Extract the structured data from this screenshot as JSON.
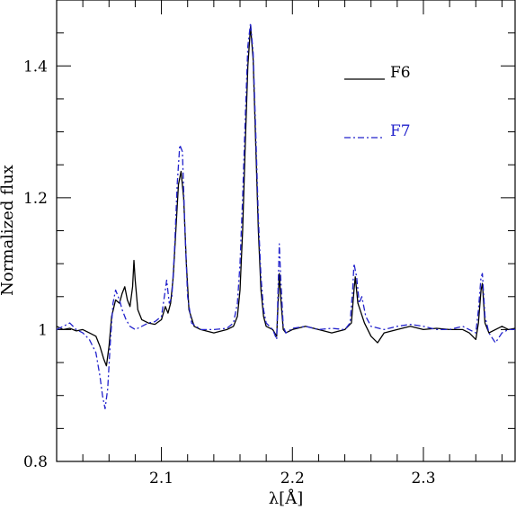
{
  "chart_data": {
    "type": "line",
    "xlabel": "λ[Å]",
    "ylabel": "Normalized flux",
    "xlim": [
      2.02,
      2.37
    ],
    "ylim": [
      0.8,
      1.5
    ],
    "x_ticks": [
      2.1,
      2.2,
      2.3
    ],
    "x_tick_labels": [
      "2.1",
      "2.2",
      "2.3"
    ],
    "y_ticks": [
      0.8,
      1.0,
      1.2,
      1.4
    ],
    "y_tick_labels": [
      "0.8",
      "1",
      "1.2",
      "1.4"
    ],
    "grid": false,
    "legend_position": "upper-right",
    "series": [
      {
        "name": "F6",
        "color": "#000000",
        "dash": "solid",
        "points": [
          [
            2.02,
            1.005
          ],
          [
            2.025,
            1.0
          ],
          [
            2.03,
            1.002
          ],
          [
            2.035,
            0.998
          ],
          [
            2.04,
            1.0
          ],
          [
            2.045,
            0.995
          ],
          [
            2.05,
            0.99
          ],
          [
            2.053,
            0.975
          ],
          [
            2.056,
            0.955
          ],
          [
            2.058,
            0.945
          ],
          [
            2.06,
            0.975
          ],
          [
            2.062,
            1.02
          ],
          [
            2.065,
            1.045
          ],
          [
            2.068,
            1.04
          ],
          [
            2.07,
            1.055
          ],
          [
            2.072,
            1.065
          ],
          [
            2.074,
            1.045
          ],
          [
            2.076,
            1.035
          ],
          [
            2.078,
            1.065
          ],
          [
            2.079,
            1.105
          ],
          [
            2.08,
            1.075
          ],
          [
            2.082,
            1.03
          ],
          [
            2.085,
            1.015
          ],
          [
            2.09,
            1.01
          ],
          [
            2.095,
            1.008
          ],
          [
            2.1,
            1.015
          ],
          [
            2.103,
            1.035
          ],
          [
            2.105,
            1.025
          ],
          [
            2.107,
            1.04
          ],
          [
            2.109,
            1.08
          ],
          [
            2.111,
            1.15
          ],
          [
            2.113,
            1.22
          ],
          [
            2.115,
            1.24
          ],
          [
            2.117,
            1.2
          ],
          [
            2.119,
            1.1
          ],
          [
            2.121,
            1.03
          ],
          [
            2.125,
            1.005
          ],
          [
            2.13,
            1.0
          ],
          [
            2.14,
            0.995
          ],
          [
            2.15,
            1.0
          ],
          [
            2.155,
            1.005
          ],
          [
            2.158,
            1.02
          ],
          [
            2.16,
            1.06
          ],
          [
            2.162,
            1.15
          ],
          [
            2.164,
            1.28
          ],
          [
            2.166,
            1.4
          ],
          [
            2.168,
            1.46
          ],
          [
            2.17,
            1.41
          ],
          [
            2.172,
            1.28
          ],
          [
            2.174,
            1.15
          ],
          [
            2.176,
            1.06
          ],
          [
            2.178,
            1.02
          ],
          [
            2.18,
            1.005
          ],
          [
            2.185,
            1.0
          ],
          [
            2.188,
            0.99
          ],
          [
            2.189,
            1.04
          ],
          [
            2.19,
            1.085
          ],
          [
            2.191,
            1.05
          ],
          [
            2.193,
            1.0
          ],
          [
            2.195,
            0.995
          ],
          [
            2.2,
            1.0
          ],
          [
            2.21,
            1.005
          ],
          [
            2.22,
            1.0
          ],
          [
            2.23,
            0.995
          ],
          [
            2.24,
            1.0
          ],
          [
            2.245,
            1.01
          ],
          [
            2.247,
            1.06
          ],
          [
            2.248,
            1.08
          ],
          [
            2.25,
            1.04
          ],
          [
            2.255,
            1.01
          ],
          [
            2.26,
            0.99
          ],
          [
            2.265,
            0.98
          ],
          [
            2.27,
            0.995
          ],
          [
            2.28,
            1.0
          ],
          [
            2.29,
            1.005
          ],
          [
            2.3,
            1.0
          ],
          [
            2.31,
            1.002
          ],
          [
            2.32,
            1.0
          ],
          [
            2.33,
            1.0
          ],
          [
            2.335,
            0.995
          ],
          [
            2.34,
            0.985
          ],
          [
            2.342,
            1.01
          ],
          [
            2.344,
            1.06
          ],
          [
            2.345,
            1.07
          ],
          [
            2.347,
            1.01
          ],
          [
            2.35,
            0.995
          ],
          [
            2.355,
            1.0
          ],
          [
            2.36,
            1.005
          ],
          [
            2.365,
            1.0
          ],
          [
            2.37,
            1.002
          ]
        ]
      },
      {
        "name": "F7",
        "color": "#2222cc",
        "dash": "dashdot",
        "points": [
          [
            2.02,
            1.0
          ],
          [
            2.025,
            1.005
          ],
          [
            2.03,
            1.01
          ],
          [
            2.035,
            1.0
          ],
          [
            2.04,
            0.995
          ],
          [
            2.045,
            0.985
          ],
          [
            2.05,
            0.965
          ],
          [
            2.053,
            0.93
          ],
          [
            2.055,
            0.9
          ],
          [
            2.057,
            0.88
          ],
          [
            2.059,
            0.91
          ],
          [
            2.061,
            0.98
          ],
          [
            2.063,
            1.04
          ],
          [
            2.065,
            1.06
          ],
          [
            2.068,
            1.045
          ],
          [
            2.07,
            1.03
          ],
          [
            2.073,
            1.015
          ],
          [
            2.076,
            1.005
          ],
          [
            2.08,
            1.0
          ],
          [
            2.085,
            1.005
          ],
          [
            2.09,
            1.01
          ],
          [
            2.095,
            1.012
          ],
          [
            2.1,
            1.02
          ],
          [
            2.103,
            1.06
          ],
          [
            2.104,
            1.075
          ],
          [
            2.106,
            1.04
          ],
          [
            2.108,
            1.05
          ],
          [
            2.11,
            1.12
          ],
          [
            2.112,
            1.22
          ],
          [
            2.114,
            1.28
          ],
          [
            2.116,
            1.27
          ],
          [
            2.118,
            1.15
          ],
          [
            2.12,
            1.05
          ],
          [
            2.123,
            1.01
          ],
          [
            2.13,
            1.0
          ],
          [
            2.14,
            1.0
          ],
          [
            2.15,
            1.002
          ],
          [
            2.155,
            1.01
          ],
          [
            2.158,
            1.04
          ],
          [
            2.16,
            1.1
          ],
          [
            2.162,
            1.2
          ],
          [
            2.164,
            1.32
          ],
          [
            2.166,
            1.43
          ],
          [
            2.168,
            1.465
          ],
          [
            2.17,
            1.42
          ],
          [
            2.172,
            1.3
          ],
          [
            2.174,
            1.17
          ],
          [
            2.176,
            1.08
          ],
          [
            2.178,
            1.03
          ],
          [
            2.18,
            1.01
          ],
          [
            2.185,
            1.0
          ],
          [
            2.188,
            0.985
          ],
          [
            2.189,
            1.06
          ],
          [
            2.19,
            1.13
          ],
          [
            2.191,
            1.08
          ],
          [
            2.193,
            1.005
          ],
          [
            2.195,
            0.995
          ],
          [
            2.2,
            1.002
          ],
          [
            2.21,
            1.005
          ],
          [
            2.22,
            1.0
          ],
          [
            2.23,
            1.002
          ],
          [
            2.24,
            1.0
          ],
          [
            2.244,
            1.01
          ],
          [
            2.246,
            1.06
          ],
          [
            2.247,
            1.1
          ],
          [
            2.249,
            1.08
          ],
          [
            2.251,
            1.04
          ],
          [
            2.253,
            1.05
          ],
          [
            2.256,
            1.02
          ],
          [
            2.26,
            1.005
          ],
          [
            2.27,
            1.0
          ],
          [
            2.28,
            1.005
          ],
          [
            2.29,
            1.008
          ],
          [
            2.3,
            1.005
          ],
          [
            2.31,
            1.0
          ],
          [
            2.32,
            1.0
          ],
          [
            2.33,
            1.005
          ],
          [
            2.335,
            1.0
          ],
          [
            2.34,
            0.995
          ],
          [
            2.342,
            1.03
          ],
          [
            2.344,
            1.08
          ],
          [
            2.345,
            1.085
          ],
          [
            2.347,
            1.02
          ],
          [
            2.35,
            0.995
          ],
          [
            2.355,
            0.98
          ],
          [
            2.36,
            0.995
          ],
          [
            2.365,
            1.0
          ],
          [
            2.37,
            1.0
          ]
        ]
      }
    ]
  }
}
